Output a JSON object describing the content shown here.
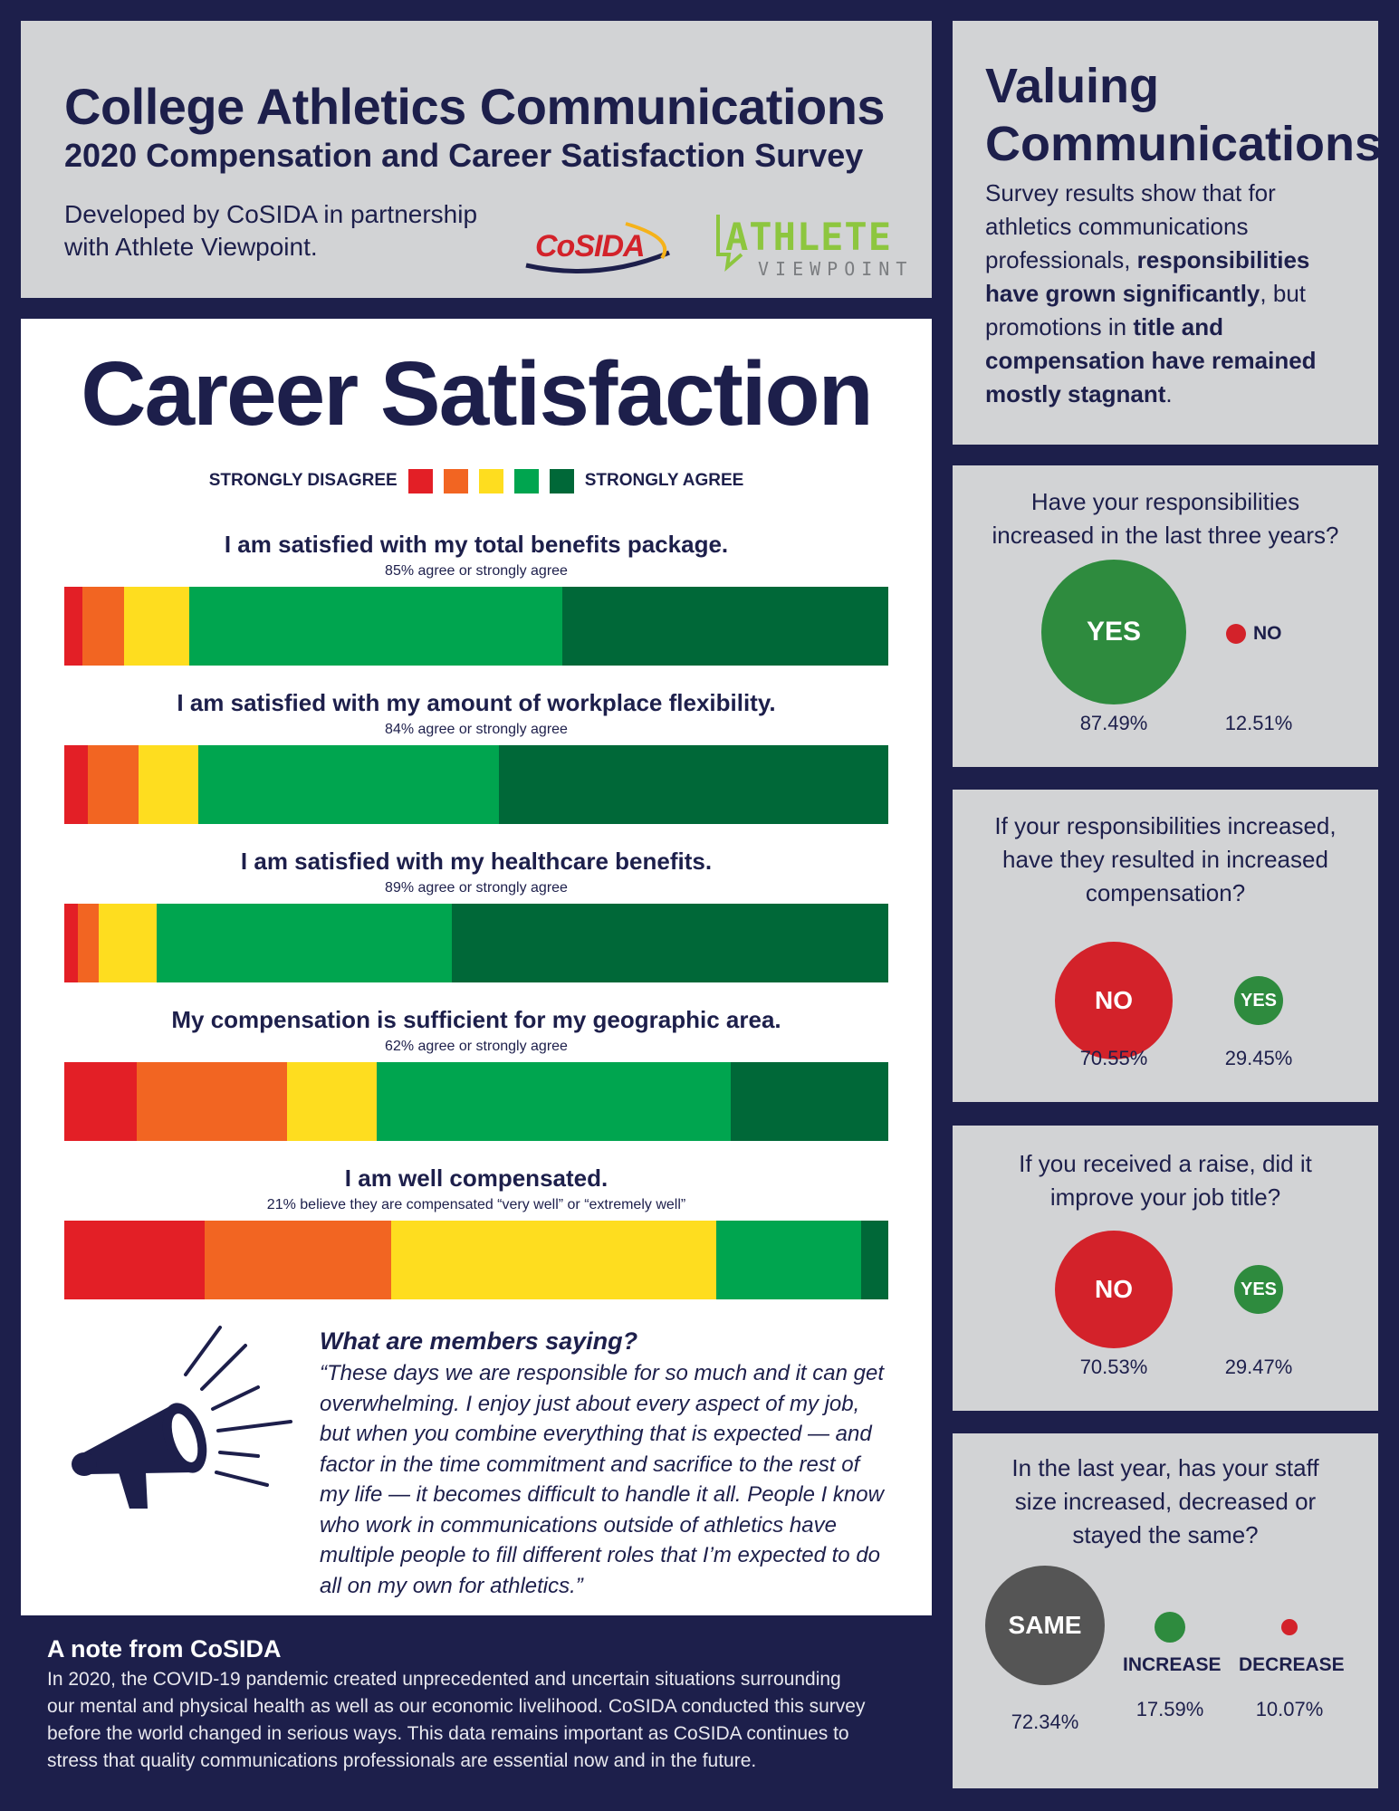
{
  "header": {
    "title": "College Athletics Communications",
    "subtitle": "2020 Compensation and Career Satisfaction Survey",
    "developed_by": "Developed by CoSIDA in partnership with Athlete Viewpoint.",
    "logo_cosida": "CoSIDA",
    "logo_athlete_top": "ATHLETE",
    "logo_athlete_bottom": "VIEWPOINT"
  },
  "career": {
    "title": "Career Satisfaction",
    "legend": {
      "left": "STRONGLY DISAGREE",
      "right": "STRONGLY AGREE",
      "colors": [
        "#e31f26",
        "#f26522",
        "#fedd1f",
        "#00a54f",
        "#006838"
      ]
    },
    "questions": [
      {
        "title": "I am satisfied with my total benefits package.",
        "sub": "85% agree or strongly agree",
        "shares": [
          2.2,
          5.0,
          8.0,
          45.2,
          39.6
        ]
      },
      {
        "title": "I am satisfied with my amount of workplace flexibility.",
        "sub": "84% agree or strongly agree",
        "shares": [
          2.9,
          6.1,
          7.3,
          36.4,
          47.3
        ]
      },
      {
        "title": "I am satisfied with my healthcare benefits.",
        "sub": "89% agree or strongly agree",
        "shares": [
          1.6,
          2.6,
          7.0,
          35.8,
          53.0
        ]
      },
      {
        "title": "My compensation is sufficient for my geographic area.",
        "sub": "62% agree or strongly agree",
        "shares": [
          8.8,
          18.2,
          10.9,
          43.0,
          19.1
        ]
      },
      {
        "title": "I am well compensated.",
        "sub": "21% believe they are compensated “very well” or “extremely well”",
        "shares": [
          17.0,
          22.7,
          39.4,
          17.6,
          3.3
        ]
      }
    ],
    "quote_heading": "What are members saying?",
    "quote_lines": [
      "“These days we are responsible for so much and it can get",
      "overwhelming. I enjoy just about every aspect of my job,",
      "but when you combine everything that is expected — and",
      "factor in the time commitment and sacrifice to the rest of",
      "my life — it becomes difficult to handle it all. People I know",
      "who work in communications outside of athletics have",
      "multiple people to fill different roles that I’m expected to do",
      "all on my own for athletics.”"
    ]
  },
  "note": {
    "heading": "A note from CoSIDA",
    "lines": [
      "In 2020, the COVID-19 pandemic created unprecedented and uncertain situations surrounding",
      "our mental and physical health as well as our economic livelihood. CoSIDA conducted this survey",
      "before the world changed in serious ways. This data remains important as CoSIDA continues to",
      "stress that quality communications professionals are essential now and in the future."
    ]
  },
  "valuing": {
    "title_line1": "Valuing",
    "title_line2": "Communications",
    "body_1": "Survey results show that for athletics communications professionals, ",
    "body_b1": "responsibilities have grown significantly",
    "body_2": ", but promotions in ",
    "body_b2": "title and compensation have remained mostly stagnant",
    "body_3": "."
  },
  "q1": {
    "line1": "Have your responsibilities",
    "line2": "increased in the last three years?",
    "big_label": "YES",
    "big_pct": "87.49%",
    "small_label": "NO",
    "small_pct": "12.51%"
  },
  "q2": {
    "line1": "If your responsibilities increased,",
    "line2": "have they resulted in increased",
    "line3": "compensation?",
    "big_label": "NO",
    "big_pct": "70.55%",
    "small_label": "YES",
    "small_pct": "29.45%"
  },
  "q3": {
    "line1": "If you received a raise, did it",
    "line2": "improve your job title?",
    "big_label": "NO",
    "big_pct": "70.53%",
    "small_label": "YES",
    "small_pct": "29.47%"
  },
  "q4": {
    "line1": "In the last year, has your staff",
    "line2": "size increased, decreased or",
    "line3": "stayed the same?",
    "big_label": "SAME",
    "big_pct": "72.34%",
    "mid_label": "INCREASE",
    "mid_pct": "17.59%",
    "small_label": "DECREASE",
    "small_pct": "10.07%"
  },
  "colors": {
    "navy": "#1d1f4b",
    "green": "#2e8b3e",
    "red": "#d3222a",
    "grey_circle": "#555555"
  }
}
